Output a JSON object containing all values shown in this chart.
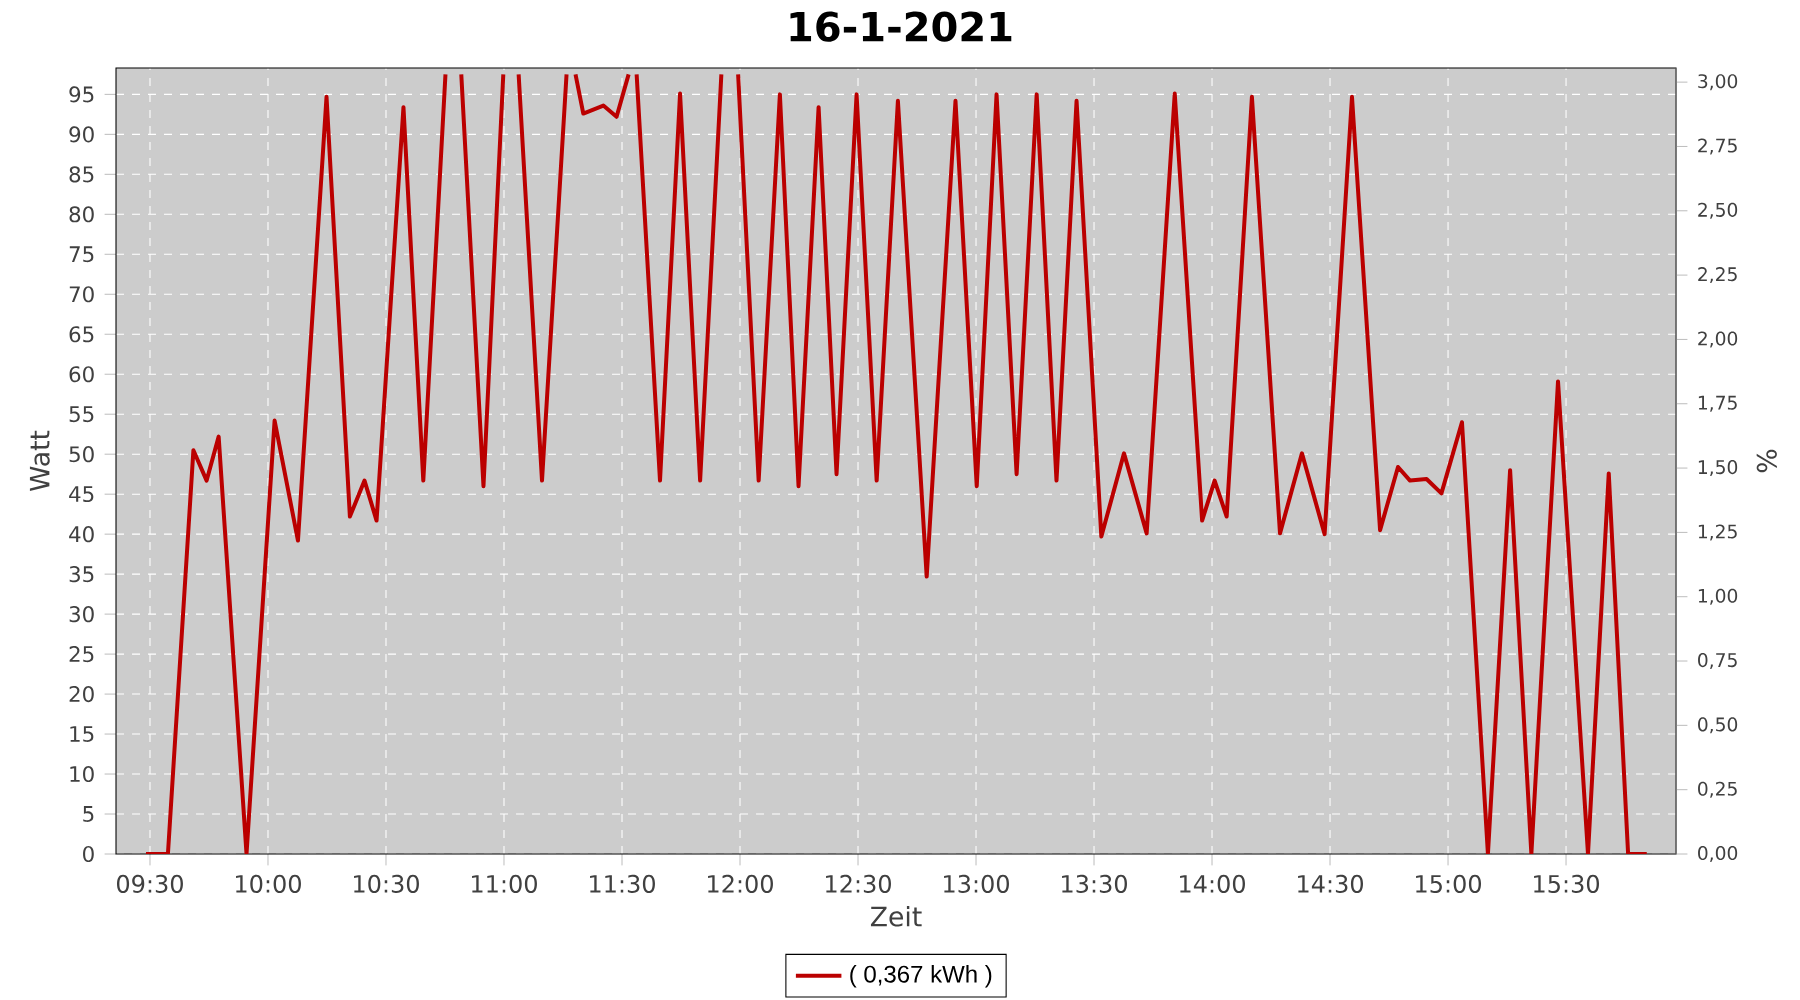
{
  "chart_data": {
    "type": "line",
    "title": "16-1-2021",
    "xlabel": "Zeit",
    "ylabel": "Watt",
    "y2label": "%",
    "x": [
      9.483,
      9.576,
      9.684,
      9.74,
      9.791,
      9.909,
      10.028,
      10.127,
      10.248,
      10.347,
      10.409,
      10.46,
      10.574,
      10.658,
      10.752,
      10.785,
      10.819,
      10.913,
      10.997,
      11.03,
      11.062,
      11.161,
      11.265,
      11.284,
      11.303,
      11.336,
      11.421,
      11.477,
      11.528,
      11.545,
      11.562,
      11.661,
      11.746,
      11.831,
      11.921,
      11.956,
      11.992,
      12.079,
      12.169,
      12.248,
      12.333,
      12.409,
      12.494,
      12.579,
      12.669,
      12.791,
      12.913,
      13.003,
      13.087,
      13.172,
      13.257,
      13.341,
      13.426,
      13.531,
      13.627,
      13.723,
      13.842,
      13.958,
      14.011,
      14.062,
      14.169,
      14.288,
      14.381,
      14.477,
      14.593,
      14.712,
      14.788,
      14.839,
      14.909,
      14.972,
      15.059,
      15.169,
      15.263,
      15.353,
      15.466,
      15.593,
      15.681,
      15.763,
      15.842
    ],
    "series": [
      {
        "name": "( 0,367 kWh )",
        "color": "#bb0000",
        "values": [
          0,
          0,
          50.5,
          46.7,
          52.2,
          0,
          54.2,
          39.2,
          94.7,
          42.2,
          46.7,
          41.7,
          93.4,
          46.7,
          97.5,
          null,
          97.5,
          46,
          97.5,
          null,
          97.5,
          46.7,
          97.5,
          null,
          97.5,
          92.6,
          93.6,
          92.2,
          97.5,
          null,
          97.5,
          46.7,
          95.1,
          46.7,
          97.5,
          null,
          97.5,
          46.7,
          95,
          46,
          93.4,
          47.5,
          95,
          46.7,
          94.2,
          34.7,
          94.2,
          46,
          95,
          47.5,
          95,
          46.7,
          94.2,
          39.7,
          50.1,
          40.1,
          95.1,
          41.7,
          46.7,
          42.2,
          94.7,
          40.1,
          50.1,
          40,
          94.7,
          40.5,
          48.4,
          46.7,
          46.9,
          45.1,
          54,
          0,
          48,
          0,
          59.1,
          0,
          47.6,
          0,
          0
        ]
      }
    ],
    "xlim": [
      9.356,
      15.966
    ],
    "ylim": [
      0,
      98.3
    ],
    "y2lim": [
      0,
      3.055
    ],
    "xticks": [
      {
        "value": 9.5,
        "label": "09:30"
      },
      {
        "value": 10,
        "label": "10:00"
      },
      {
        "value": 10.5,
        "label": "10:30"
      },
      {
        "value": 11,
        "label": "11:00"
      },
      {
        "value": 11.5,
        "label": "11:30"
      },
      {
        "value": 12,
        "label": "12:00"
      },
      {
        "value": 12.5,
        "label": "12:30"
      },
      {
        "value": 13,
        "label": "13:00"
      },
      {
        "value": 13.5,
        "label": "13:30"
      },
      {
        "value": 14,
        "label": "14:00"
      },
      {
        "value": 14.5,
        "label": "14:30"
      },
      {
        "value": 15,
        "label": "15:00"
      },
      {
        "value": 15.5,
        "label": "15:30"
      }
    ],
    "yticks": [
      0,
      5,
      10,
      15,
      20,
      25,
      30,
      35,
      40,
      45,
      50,
      55,
      60,
      65,
      70,
      75,
      80,
      85,
      90,
      95
    ],
    "y2ticks": [
      {
        "value": 0,
        "label": "0,00"
      },
      {
        "value": 0.25,
        "label": "0,25"
      },
      {
        "value": 0.5,
        "label": "0,50"
      },
      {
        "value": 0.75,
        "label": "0,75"
      },
      {
        "value": 1,
        "label": "1,00"
      },
      {
        "value": 1.25,
        "label": "1,25"
      },
      {
        "value": 1.5,
        "label": "1,50"
      },
      {
        "value": 1.75,
        "label": "1,75"
      },
      {
        "value": 2,
        "label": "2,00"
      },
      {
        "value": 2.25,
        "label": "2,25"
      },
      {
        "value": 2.5,
        "label": "2,50"
      },
      {
        "value": 2.75,
        "label": "2,75"
      },
      {
        "value": 3,
        "label": "3,00"
      }
    ],
    "grid": true,
    "legend": "bottom",
    "marker": "none",
    "line_style": "solid"
  }
}
